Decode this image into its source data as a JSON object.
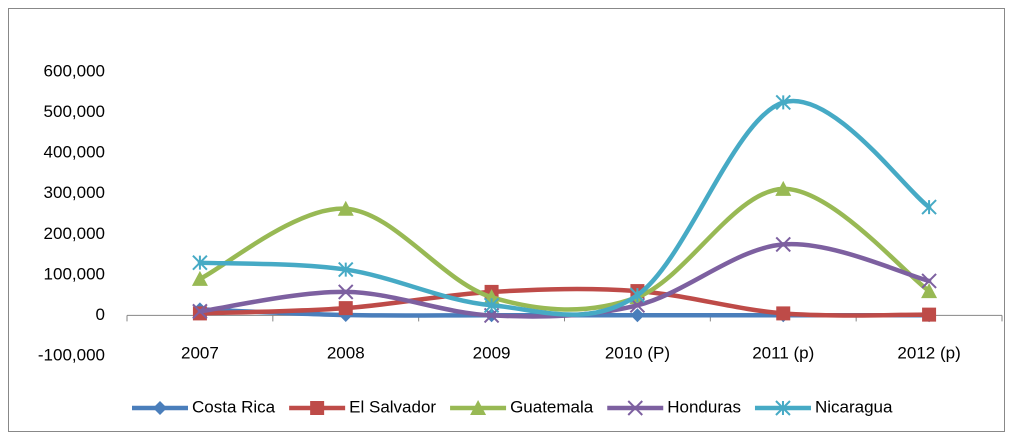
{
  "chart_data": {
    "type": "line",
    "smooth": true,
    "legend": "bottom",
    "grid": false,
    "categories": [
      "2007",
      "2008",
      "2009",
      "2010 (P)",
      "2011 (p)",
      "2012 (p)"
    ],
    "ylim": [
      -100000,
      600000
    ],
    "yticks": [
      {
        "value": -100000,
        "label": "-100,000"
      },
      0,
      {
        "value": 100000,
        "label": "100,000"
      },
      {
        "value": 200000,
        "label": "200,000"
      },
      {
        "value": 300000,
        "label": "300,000"
      },
      {
        "value": 400000,
        "label": "400,000"
      },
      {
        "value": 500000,
        "label": "500,000"
      },
      {
        "value": 600000,
        "label": "600,000"
      }
    ],
    "series": [
      {
        "name": "Costa Rica",
        "color": "#4a7ebb",
        "marker": "diamond",
        "values": [
          15000,
          1000,
          500,
          500,
          500,
          500
        ]
      },
      {
        "name": "El Salvador",
        "color": "#be4b48",
        "marker": "square",
        "values": [
          5000,
          18000,
          58000,
          60000,
          5000,
          2000
        ]
      },
      {
        "name": "Guatemala",
        "color": "#98b954",
        "marker": "triangle",
        "values": [
          90000,
          263000,
          45000,
          45000,
          312000,
          60000
        ]
      },
      {
        "name": "Honduras",
        "color": "#7d60a0",
        "marker": "x",
        "values": [
          10000,
          58000,
          0,
          25000,
          175000,
          85000
        ]
      },
      {
        "name": "Nicaragua",
        "color": "#46aac5",
        "marker": "star",
        "values": [
          130000,
          113000,
          25000,
          50000,
          525000,
          267000
        ]
      }
    ]
  }
}
